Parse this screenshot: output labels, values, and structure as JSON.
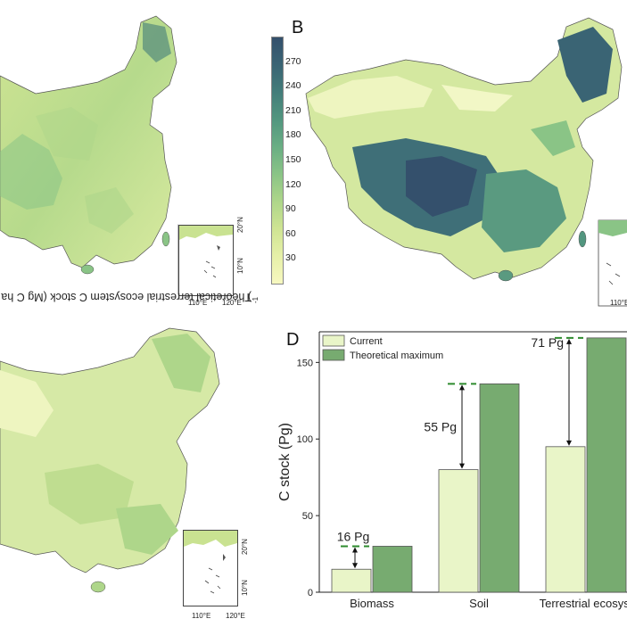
{
  "panels": {
    "B": "B",
    "D": "D"
  },
  "colorbar": {
    "title": "Theoretical terrestrial ecosystem C stock (Mg C ha",
    "title_sup": "-1",
    "title_end": ")",
    "ticks": [
      "30",
      "60",
      "90",
      "120",
      "150",
      "180",
      "210",
      "240",
      "270"
    ],
    "colors": [
      "#f7f8c0",
      "#e6f0a8",
      "#cfe493",
      "#aed68a",
      "#8ac486",
      "#6aae84",
      "#52967f",
      "#437d7a",
      "#3a6474",
      "#34506c"
    ]
  },
  "inset": {
    "lat_ticks": [
      "20°N",
      "10°N"
    ],
    "lon_ticks": [
      "110°E",
      "120°E"
    ]
  },
  "chart_data": {
    "type": "bar",
    "categories": [
      "Biomass",
      "Soil",
      "Terrestrial ecosyst"
    ],
    "series": [
      {
        "name": "Current",
        "values": [
          15,
          80,
          95
        ],
        "color": "#e9f5c8"
      },
      {
        "name": "Theoretical maximum",
        "values": [
          30,
          136,
          166
        ],
        "color": "#77ab70"
      }
    ],
    "gap_labels": [
      "16 Pg",
      "55 Pg",
      "71 Pg"
    ],
    "ylabel": "C stock (Pg)",
    "ylim": [
      0,
      170
    ],
    "yticks": [
      0,
      50,
      100,
      150
    ],
    "legend_position": "top-left"
  }
}
